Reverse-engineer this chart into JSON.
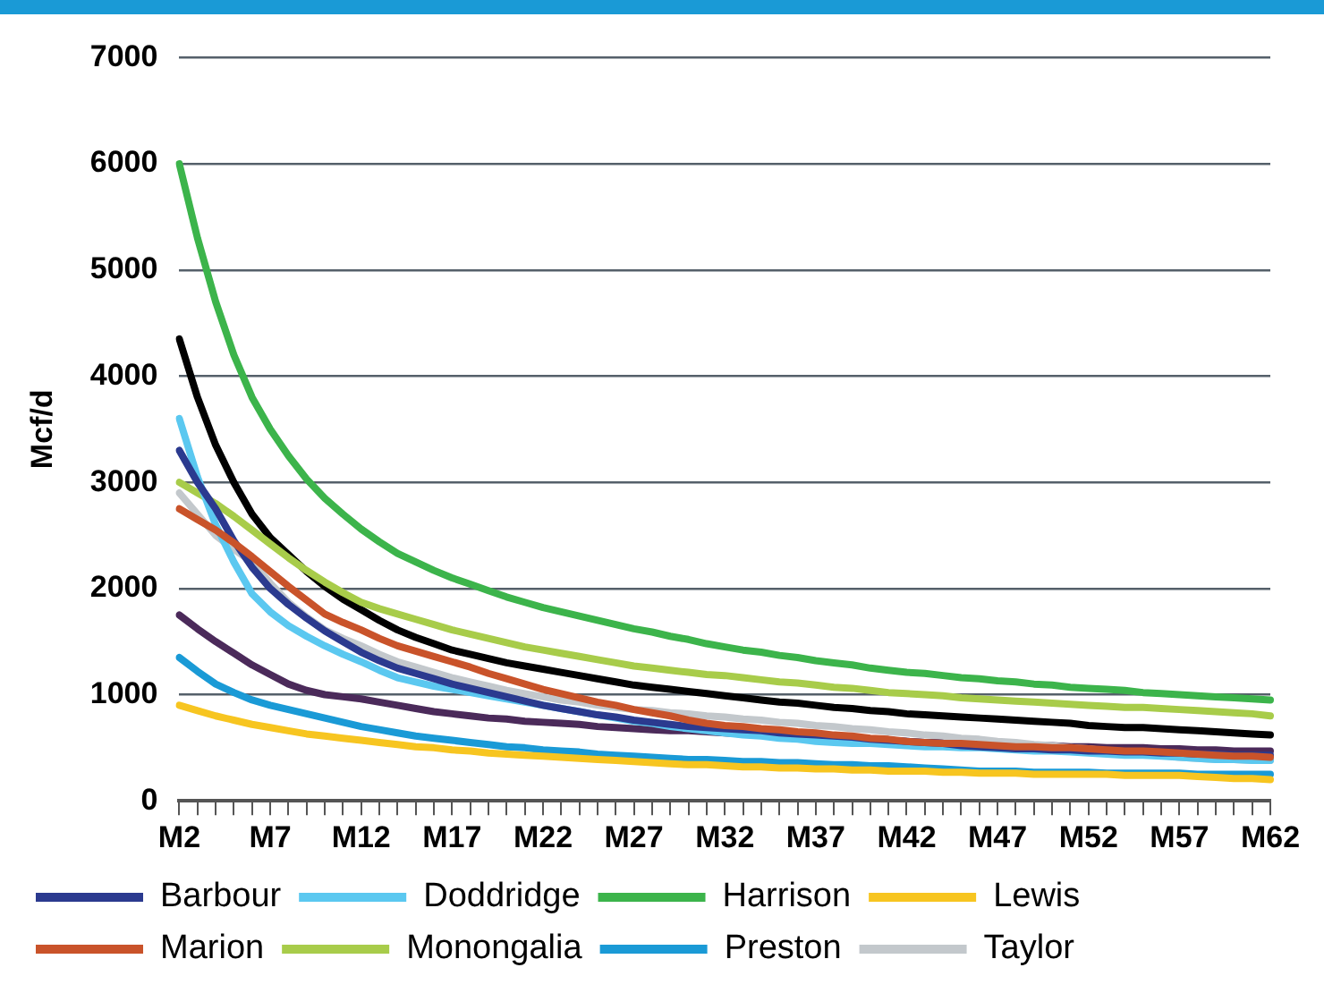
{
  "chart_data": {
    "type": "line",
    "ylabel": "Mcf/d",
    "categories": [
      "M2",
      null,
      null,
      null,
      null,
      "M7",
      null,
      null,
      null,
      null,
      "M12",
      null,
      null,
      null,
      null,
      "M17",
      null,
      null,
      null,
      null,
      "M22",
      null,
      null,
      null,
      null,
      "M27",
      null,
      null,
      null,
      null,
      "M32",
      null,
      null,
      null,
      null,
      "M37",
      null,
      null,
      null,
      null,
      "M42",
      null,
      null,
      null,
      null,
      "M47",
      null,
      null,
      null,
      null,
      "M52",
      null,
      null,
      null,
      null,
      "M57",
      null,
      null,
      null,
      null,
      "M62"
    ],
    "ylim": [
      0,
      7000
    ],
    "yticks": [
      0,
      1000,
      2000,
      3000,
      4000,
      5000,
      6000,
      7000
    ],
    "grid": "y",
    "legend": "bottom",
    "marker": "none",
    "line_style": "solid",
    "series": [
      {
        "name": "Barbour",
        "color": "#2b3a8f",
        "values": [
          3300,
          3000,
          2750,
          2450,
          2200,
          2000,
          1850,
          1720,
          1600,
          1500,
          1400,
          1320,
          1250,
          1200,
          1150,
          1100,
          1060,
          1020,
          980,
          940,
          900,
          870,
          840,
          810,
          790,
          760,
          740,
          720,
          700,
          690,
          680,
          670,
          660,
          640,
          630,
          620,
          610,
          600,
          580,
          570,
          560,
          550,
          540,
          520,
          510,
          500,
          490,
          490,
          480,
          480,
          470,
          470,
          460,
          460,
          450,
          450,
          440,
          440,
          430,
          430,
          430
        ]
      },
      {
        "name": "Doddridge",
        "color": "#5bc8f0",
        "values": [
          3600,
          3050,
          2600,
          2250,
          1950,
          1780,
          1650,
          1550,
          1460,
          1380,
          1310,
          1230,
          1160,
          1120,
          1080,
          1050,
          1020,
          990,
          960,
          930,
          900,
          870,
          840,
          810,
          780,
          750,
          730,
          700,
          680,
          660,
          640,
          620,
          610,
          590,
          580,
          560,
          550,
          540,
          540,
          530,
          520,
          510,
          510,
          500,
          500,
          490,
          480,
          470,
          470,
          460,
          450,
          440,
          430,
          430,
          420,
          410,
          400,
          390,
          390,
          380,
          380
        ]
      },
      {
        "name": "Harrison",
        "color": "#3cb44b",
        "values": [
          6000,
          5300,
          4700,
          4200,
          3800,
          3500,
          3250,
          3030,
          2850,
          2700,
          2560,
          2440,
          2330,
          2250,
          2170,
          2100,
          2040,
          1980,
          1920,
          1870,
          1820,
          1780,
          1740,
          1700,
          1660,
          1620,
          1590,
          1550,
          1520,
          1480,
          1450,
          1420,
          1400,
          1370,
          1350,
          1320,
          1300,
          1280,
          1250,
          1230,
          1210,
          1200,
          1180,
          1160,
          1150,
          1130,
          1120,
          1100,
          1090,
          1070,
          1060,
          1050,
          1040,
          1020,
          1010,
          1000,
          990,
          980,
          970,
          960,
          950
        ]
      },
      {
        "name": "Lewis",
        "color": "#f7c520",
        "values": [
          900,
          850,
          800,
          760,
          720,
          690,
          660,
          630,
          610,
          590,
          570,
          550,
          530,
          510,
          500,
          480,
          470,
          450,
          440,
          430,
          420,
          410,
          400,
          390,
          380,
          370,
          360,
          350,
          340,
          340,
          330,
          320,
          320,
          310,
          310,
          300,
          300,
          290,
          290,
          280,
          280,
          280,
          270,
          270,
          260,
          260,
          260,
          250,
          250,
          250,
          250,
          250,
          240,
          240,
          240,
          240,
          230,
          220,
          210,
          210,
          200
        ]
      },
      {
        "name": "Marion",
        "color": "#c9532a",
        "values": [
          2750,
          2650,
          2550,
          2430,
          2300,
          2160,
          2020,
          1890,
          1760,
          1680,
          1610,
          1530,
          1460,
          1410,
          1360,
          1310,
          1260,
          1200,
          1150,
          1100,
          1050,
          1010,
          970,
          930,
          900,
          860,
          830,
          800,
          760,
          730,
          710,
          700,
          680,
          670,
          650,
          640,
          620,
          610,
          590,
          580,
          560,
          550,
          540,
          540,
          530,
          520,
          510,
          510,
          500,
          500,
          490,
          480,
          470,
          470,
          460,
          450,
          440,
          430,
          420,
          420,
          410
        ]
      },
      {
        "name": "Monongalia",
        "color": "#a8cc4a",
        "values": [
          3000,
          2900,
          2800,
          2680,
          2550,
          2420,
          2290,
          2170,
          2060,
          1960,
          1870,
          1810,
          1760,
          1710,
          1660,
          1610,
          1570,
          1530,
          1490,
          1450,
          1420,
          1390,
          1360,
          1330,
          1300,
          1270,
          1250,
          1230,
          1210,
          1190,
          1180,
          1160,
          1140,
          1120,
          1110,
          1090,
          1070,
          1060,
          1040,
          1020,
          1010,
          1000,
          990,
          970,
          960,
          950,
          940,
          930,
          920,
          910,
          900,
          890,
          880,
          880,
          870,
          860,
          850,
          840,
          830,
          820,
          800
        ]
      },
      {
        "name": "Preston",
        "color": "#1a9ad6",
        "values": [
          1350,
          1220,
          1100,
          1020,
          950,
          900,
          860,
          820,
          780,
          740,
          700,
          670,
          640,
          610,
          590,
          570,
          550,
          530,
          510,
          500,
          480,
          470,
          460,
          440,
          430,
          420,
          410,
          400,
          390,
          390,
          380,
          370,
          370,
          360,
          360,
          350,
          340,
          340,
          330,
          330,
          320,
          310,
          300,
          290,
          280,
          280,
          280,
          270,
          270,
          270,
          270,
          260,
          260,
          260,
          260,
          260,
          250,
          250,
          250,
          250,
          250
        ]
      },
      {
        "name": "Taylor",
        "color": "#c3c8cc",
        "values": [
          2900,
          2700,
          2500,
          2370,
          2250,
          2050,
          1870,
          1730,
          1610,
          1530,
          1460,
          1380,
          1310,
          1260,
          1210,
          1160,
          1120,
          1080,
          1040,
          1010,
          980,
          950,
          930,
          900,
          880,
          860,
          850,
          830,
          820,
          800,
          790,
          770,
          760,
          740,
          730,
          710,
          700,
          680,
          670,
          650,
          640,
          620,
          610,
          590,
          580,
          560,
          550,
          530,
          520,
          500,
          490,
          470,
          460,
          440,
          430,
          410,
          400,
          390,
          390,
          380,
          380
        ]
      },
      {
        "color": "#000000",
        "values": [
          4350,
          3800,
          3350,
          3000,
          2700,
          2480,
          2320,
          2160,
          2020,
          1900,
          1800,
          1700,
          1610,
          1540,
          1480,
          1420,
          1380,
          1340,
          1300,
          1270,
          1240,
          1210,
          1180,
          1150,
          1120,
          1090,
          1070,
          1050,
          1030,
          1010,
          990,
          970,
          950,
          930,
          920,
          900,
          880,
          870,
          850,
          840,
          820,
          810,
          800,
          790,
          780,
          770,
          760,
          750,
          740,
          730,
          710,
          700,
          690,
          690,
          680,
          670,
          660,
          650,
          640,
          630,
          620
        ]
      },
      {
        "color": "#4b2a5a",
        "values": [
          1750,
          1620,
          1500,
          1390,
          1280,
          1190,
          1100,
          1040,
          1000,
          980,
          960,
          930,
          900,
          870,
          840,
          820,
          800,
          780,
          770,
          750,
          740,
          730,
          720,
          700,
          690,
          680,
          670,
          660,
          660,
          650,
          640,
          630,
          620,
          620,
          610,
          600,
          590,
          580,
          580,
          570,
          560,
          550,
          550,
          540,
          540,
          530,
          530,
          520,
          520,
          510,
          510,
          500,
          500,
          500,
          490,
          490,
          480,
          480,
          470,
          470,
          470
        ]
      }
    ]
  }
}
